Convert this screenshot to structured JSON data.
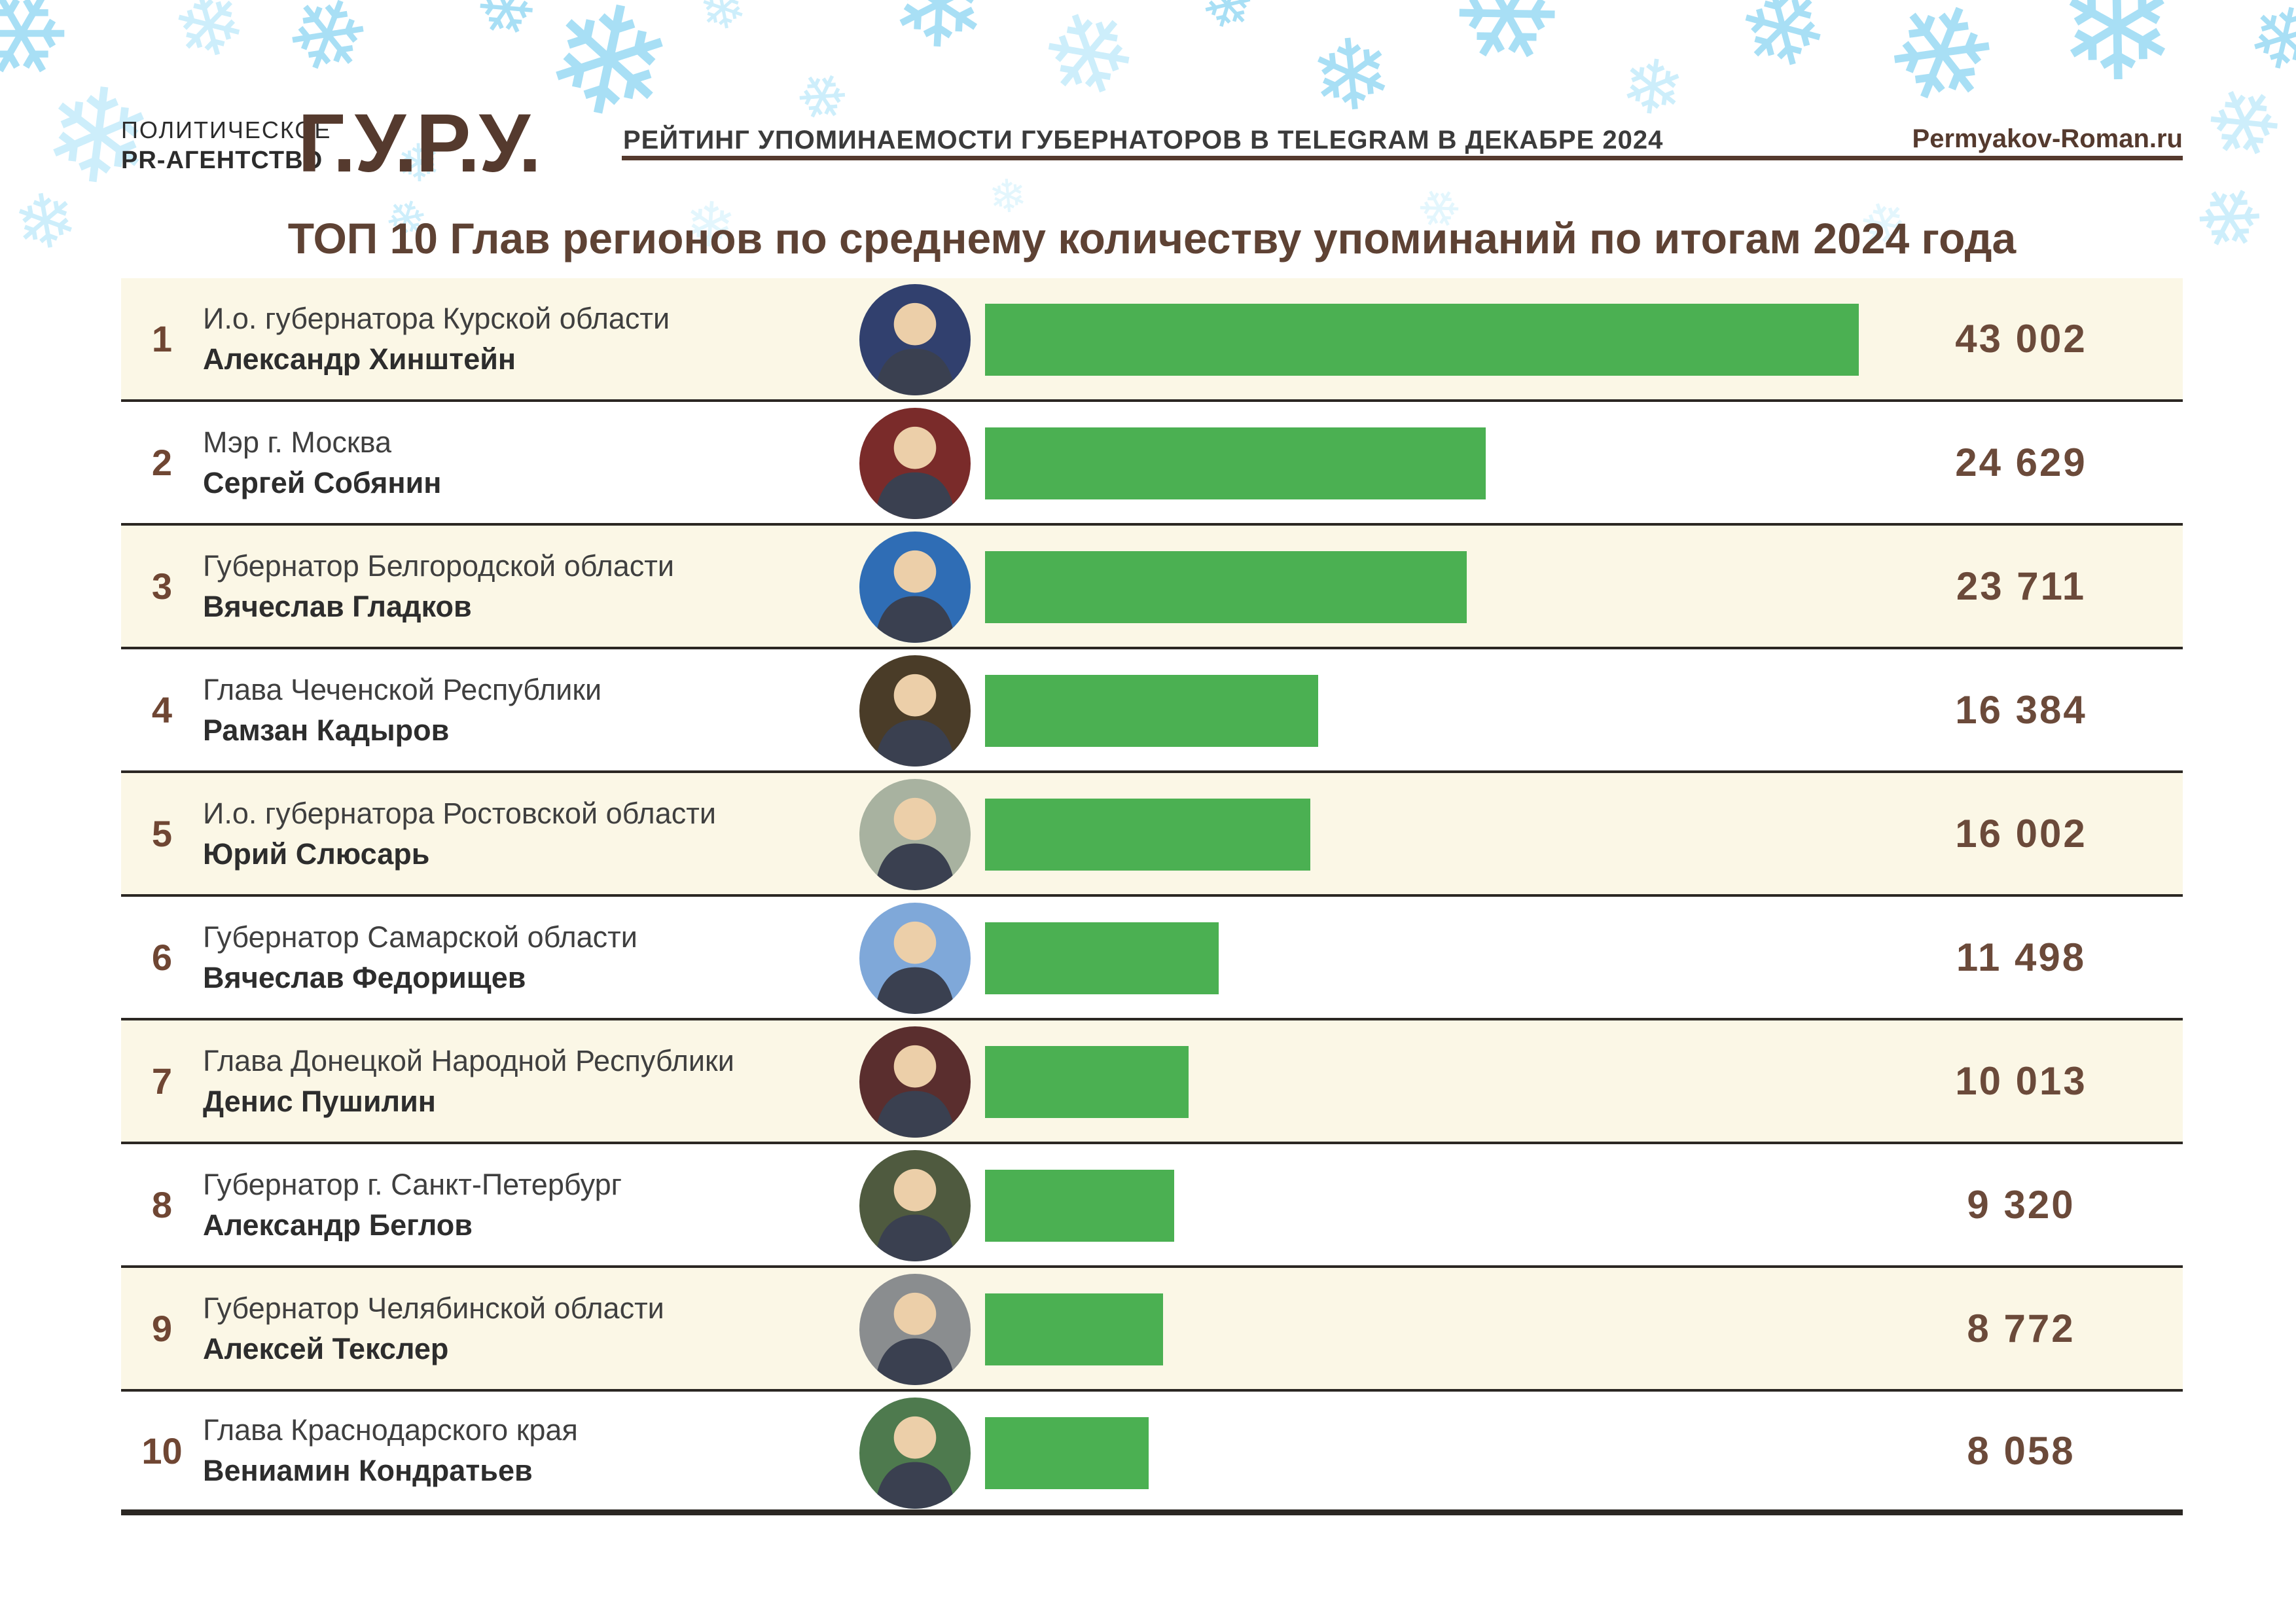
{
  "header": {
    "agency_line1": "ПОЛИТИЧЕСКОЕ",
    "agency_line2": "PR-АГЕНТСТВО",
    "logo": "Г.У.Р.У.",
    "subtitle": "РЕЙТИНГ УПОМИНАЕМОСТИ ГУБЕРНАТОРОВ В TELEGRAM В ДЕКАБРЕ 2024",
    "site": "Permyakov-Roman.ru"
  },
  "title": "ТОП 10 Глав регионов по среднему количеству упоминаний по итогам 2024 года",
  "decor": {
    "snowflake_glyph": "❄"
  },
  "colors": {
    "background": "#ffffff",
    "cream_row": "#fbf7e6",
    "bar_green": "#4bb052",
    "brown_dark": "#553a2e",
    "brown_title": "#5e4234",
    "brown_value": "#6b4a3a",
    "brown_rank": "#6f4633",
    "separator": "#2b2723",
    "snowflake_medium": "#a8dff5",
    "snowflake_light": "#cdeefb",
    "snowflake_pale": "#e3f6fd"
  },
  "chart_data": {
    "type": "bar",
    "orientation": "horizontal",
    "title": "ТОП 10 Глав регионов по среднему количеству упоминаний по итогам 2024 года",
    "xlabel": "",
    "ylabel": "",
    "value_units": "упоминания в Telegram",
    "xlim": [
      0,
      43002
    ],
    "max": 43002,
    "grid": false,
    "rows": [
      {
        "rank": "1",
        "position": "И.о. губернатора Курской области",
        "name": "Александр Хинштейн",
        "value": 43002,
        "value_label": "43 002",
        "avatar_bg": "#31406e"
      },
      {
        "rank": "2",
        "position": "Мэр г. Москва",
        "name": "Сергей Собянин",
        "value": 24629,
        "value_label": "24 629",
        "avatar_bg": "#7a2b2a"
      },
      {
        "rank": "3",
        "position": "Губернатор Белгородской области",
        "name": "Вячеслав Гладков",
        "value": 23711,
        "value_label": "23 711",
        "avatar_bg": "#2f6db5"
      },
      {
        "rank": "4",
        "position": "Глава Чеченской Республики",
        "name": "Рамзан Кадыров",
        "value": 16384,
        "value_label": "16 384",
        "avatar_bg": "#4a3c28"
      },
      {
        "rank": "5",
        "position": "И.о. губернатора Ростовской области",
        "name": "Юрий Слюсарь",
        "value": 16002,
        "value_label": "16 002",
        "avatar_bg": "#a8b2a0"
      },
      {
        "rank": "6",
        "position": "Губернатор Самарской области",
        "name": "Вячеслав Федорищев",
        "value": 11498,
        "value_label": "11 498",
        "avatar_bg": "#7fa8d9"
      },
      {
        "rank": "7",
        "position": "Глава Донецкой Народной Республики",
        "name": "Денис Пушилин",
        "value": 10013,
        "value_label": "10 013",
        "avatar_bg": "#5a2e2e"
      },
      {
        "rank": "8",
        "position": "Губернатор г. Санкт-Петербург",
        "name": "Александр Беглов",
        "value": 9320,
        "value_label": "9 320",
        "avatar_bg": "#4f5a3f"
      },
      {
        "rank": "9",
        "position": "Губернатор Челябинской области",
        "name": "Алексей Текслер",
        "value": 8772,
        "value_label": "8 772",
        "avatar_bg": "#8a8d8f"
      },
      {
        "rank": "10",
        "position": "Глава Краснодарского края",
        "name": "Вениамин Кондратьев",
        "value": 8058,
        "value_label": "8 058",
        "avatar_bg": "#4e7a4e"
      }
    ]
  }
}
